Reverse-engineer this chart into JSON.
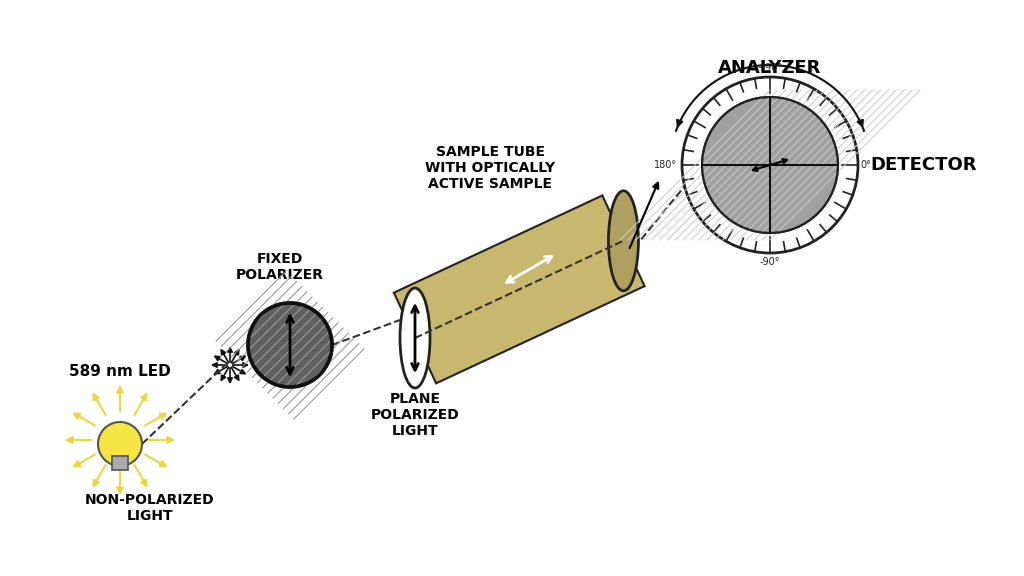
{
  "bg_color": "#ffffff",
  "title": "",
  "bulb_color": "#f5e642",
  "bulb_ray_color": "#e8d83a",
  "polarizer_color": "#808080",
  "tube_color": "#c8b86e",
  "analyzer_color": "#d0d0d0",
  "text_color": "#000000",
  "labels": {
    "led": "589 nm LED",
    "non_pol": "NON-POLARIZED\nLIGHT",
    "fixed_pol": "FIXED\nPOLARIZER",
    "sample_tube": "SAMPLE TUBE\nWITH OPTICALLY\nACTIVE SAMPLE",
    "plane_pol": "PLANE\nPOLARIZED\nLIGHT",
    "analyzer": "ANALYZER",
    "detector": "DETECTOR"
  }
}
